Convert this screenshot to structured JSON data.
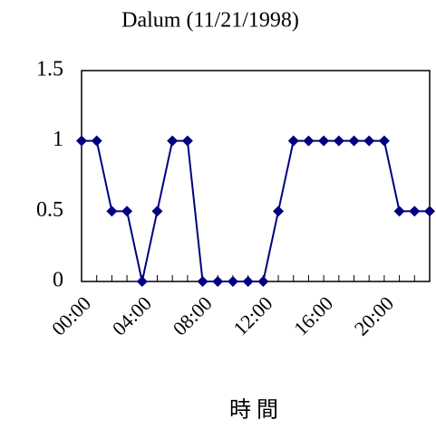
{
  "chart_data": {
    "type": "line",
    "title": "Dalum (11/21/1998)",
    "x_label": "時 間",
    "categories": [
      "00:00",
      null,
      null,
      null,
      "04:00",
      null,
      null,
      null,
      "08:00",
      null,
      null,
      null,
      "12:00",
      null,
      null,
      null,
      "16:00",
      null,
      null,
      null,
      "20:00",
      null,
      null,
      null
    ],
    "series": [
      {
        "color": "#000080",
        "values": [
          1,
          1,
          0.5,
          0.5,
          0,
          0.5,
          1,
          1,
          0,
          0,
          0,
          0,
          0,
          0.5,
          1,
          1,
          1,
          1,
          1,
          1,
          1,
          0.5,
          0.5,
          0.5
        ]
      }
    ],
    "ylim": [
      0,
      1.5
    ],
    "yticks": [
      0,
      0.5,
      1,
      1.5
    ],
    "grid": false
  }
}
